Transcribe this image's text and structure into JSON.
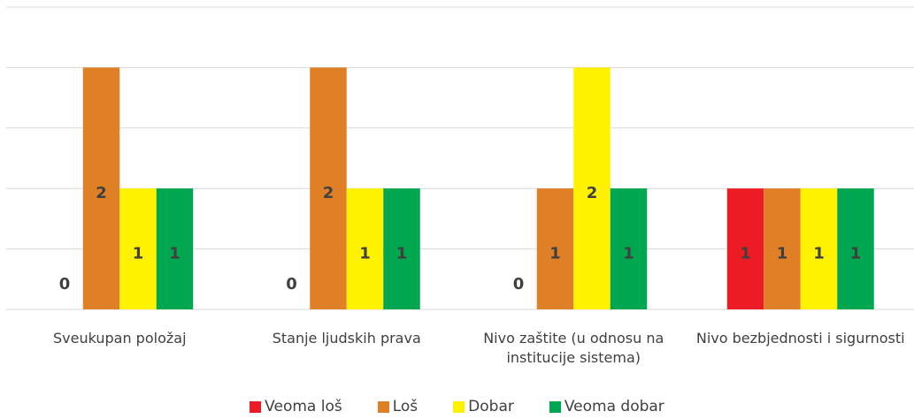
{
  "chart_data": {
    "type": "bar",
    "categories": [
      "Sveukupan položaj",
      "Stanje ljudskih prava",
      "Nivo zaštite (u odnosu na institucije sistema)",
      "Nivo bezbjednosti i sigurnosti"
    ],
    "series": [
      {
        "name": "Veoma loš",
        "color": "#ed1c24",
        "values": [
          0,
          0,
          0,
          1
        ]
      },
      {
        "name": "Loš",
        "color": "#e08026",
        "values": [
          2,
          2,
          1,
          1
        ]
      },
      {
        "name": "Dobar",
        "color": "#fff200",
        "values": [
          1,
          1,
          2,
          1
        ]
      },
      {
        "name": "Veoma dobar",
        "color": "#00a650",
        "values": [
          1,
          1,
          1,
          1
        ]
      }
    ],
    "ylim": [
      0,
      2.5
    ],
    "yticks": [
      0,
      0.5,
      1,
      1.5,
      2,
      2.5
    ],
    "grid": true,
    "legend": "bottom"
  }
}
